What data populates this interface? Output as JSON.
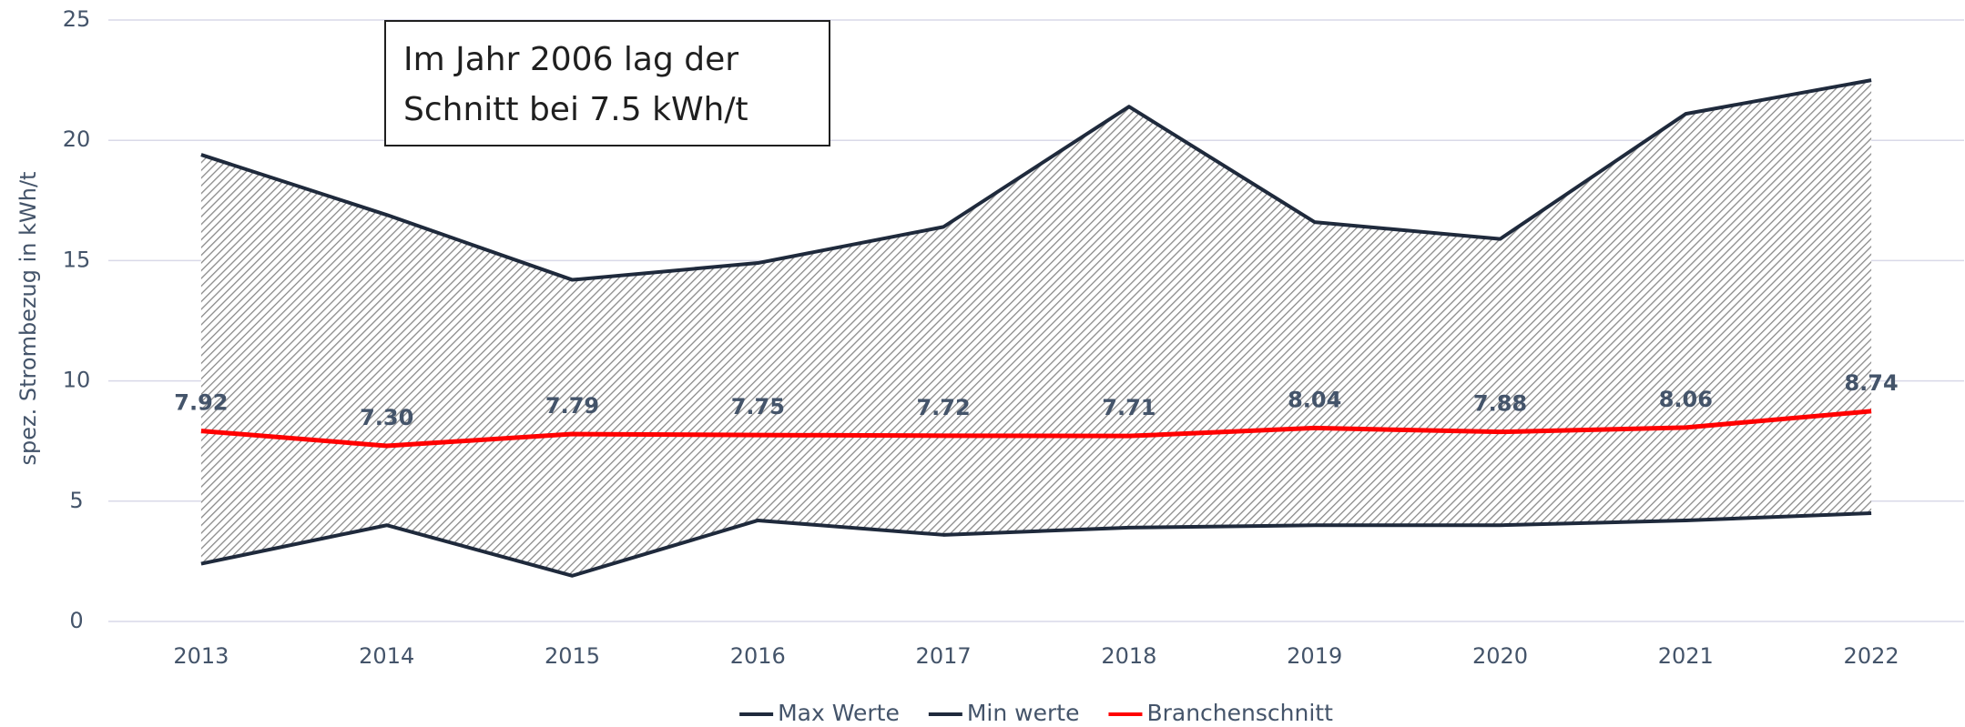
{
  "chart_data": {
    "type": "line",
    "categories": [
      "2013",
      "2014",
      "2015",
      "2016",
      "2017",
      "2018",
      "2019",
      "2020",
      "2021",
      "2022"
    ],
    "series": [
      {
        "name": "Max Werte",
        "color": "#1f2a3c",
        "values": [
          19.4,
          16.9,
          14.2,
          14.9,
          16.4,
          21.4,
          16.6,
          15.9,
          21.1,
          22.5
        ]
      },
      {
        "name": "Min werte",
        "color": "#1f2a3c",
        "values": [
          2.4,
          4.0,
          1.9,
          4.2,
          3.6,
          3.9,
          4.0,
          4.0,
          4.2,
          4.5
        ]
      },
      {
        "name": "Branchenschnitt",
        "color": "#ff0000",
        "values": [
          7.92,
          7.3,
          7.79,
          7.75,
          7.72,
          7.71,
          8.04,
          7.88,
          8.06,
          8.74
        ],
        "value_labels": [
          "7.92",
          "7.30",
          "7.79",
          "7.75",
          "7.72",
          "7.71",
          "8.04",
          "7.88",
          "8.06",
          "8.74"
        ]
      }
    ],
    "y_label": "spez. Strombezug in kWh/t",
    "annotation": [
      "Im Jahr 2006 lag der",
      "Schnitt bei 7.5 kWh/t"
    ],
    "ylim": [
      0,
      25
    ],
    "yticks": [
      0,
      5,
      10,
      15,
      20,
      25
    ],
    "grid": true,
    "legend": "bottom"
  }
}
